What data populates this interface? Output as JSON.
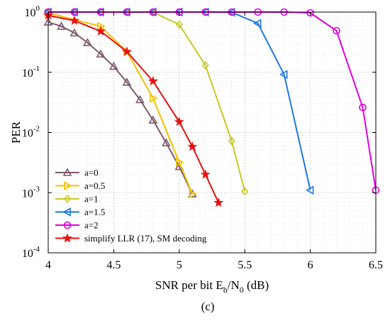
{
  "chart_data": {
    "type": "line",
    "xlabel_main": "SNR per bit E",
    "xlabel_sub1": "b",
    "xlabel_mid": "/N",
    "xlabel_sub2": "0",
    "xlabel_tail": " (dB)",
    "ylabel": "PER",
    "panel_label": "(c)",
    "xlim": [
      4,
      6.5
    ],
    "ylim_log10": [
      -4,
      0
    ],
    "y_scale": "log",
    "grid": true,
    "legend_position": "bottom-left",
    "x_ticks": [
      "4",
      "4.5",
      "5",
      "5.5",
      "6",
      "6.5"
    ],
    "x_tick_values": [
      4,
      4.5,
      5,
      5.5,
      6,
      6.5
    ],
    "y_ticks": [
      {
        "base": "10",
        "exp": "0",
        "value": 1
      },
      {
        "base": "10",
        "exp": "-1",
        "value": 0.1
      },
      {
        "base": "10",
        "exp": "-2",
        "value": 0.01
      },
      {
        "base": "10",
        "exp": "-3",
        "value": 0.001
      },
      {
        "base": "10",
        "exp": "-4",
        "value": 0.0001
      }
    ],
    "series": [
      {
        "name": "a=0",
        "color": "#7E5A6B",
        "marker": "triangle-up",
        "x": [
          4.0,
          4.1,
          4.2,
          4.3,
          4.4,
          4.5,
          4.6,
          4.7,
          4.8,
          4.9,
          5.0,
          5.1
        ],
        "y": [
          0.68,
          0.58,
          0.45,
          0.31,
          0.2,
          0.125,
          0.068,
          0.035,
          0.016,
          0.0067,
          0.0027,
          0.00095
        ]
      },
      {
        "name": "a=0.5",
        "color": "#F2C200",
        "marker": "triangle-right",
        "x": [
          4.0,
          4.4,
          4.6,
          4.8,
          5.0,
          5.1
        ],
        "y": [
          0.97,
          0.58,
          0.22,
          0.037,
          0.0032,
          0.00095
        ]
      },
      {
        "name": "a=1",
        "color": "#C9C928",
        "marker": "diamond",
        "x": [
          4.0,
          4.2,
          4.4,
          4.6,
          4.8,
          5.0,
          5.2,
          5.4,
          5.5
        ],
        "y": [
          1.0,
          1.0,
          1.0,
          1.0,
          0.99,
          0.62,
          0.13,
          0.0072,
          0.00105
        ]
      },
      {
        "name": "a=1.5",
        "color": "#1F78E0",
        "marker": "triangle-left",
        "x": [
          4.0,
          4.2,
          4.4,
          4.6,
          4.8,
          5.0,
          5.2,
          5.4,
          5.6,
          5.8,
          6.0
        ],
        "y": [
          1.0,
          1.0,
          1.0,
          1.0,
          1.0,
          1.0,
          1.0,
          0.99,
          0.65,
          0.092,
          0.0011
        ]
      },
      {
        "name": "a=2",
        "color": "#E000E0",
        "marker": "circle",
        "x": [
          4.0,
          4.2,
          4.4,
          4.6,
          4.8,
          5.0,
          5.2,
          5.4,
          5.6,
          5.8,
          6.0,
          6.2,
          6.4,
          6.5
        ],
        "y": [
          1.0,
          1.0,
          1.0,
          1.0,
          1.0,
          1.0,
          1.0,
          1.0,
          1.0,
          1.0,
          0.97,
          0.49,
          0.026,
          0.0011
        ]
      },
      {
        "name": "simplify LLR (17), SM decoding",
        "color": "#E81010",
        "marker": "star",
        "x": [
          4.0,
          4.2,
          4.4,
          4.6,
          4.8,
          5.0,
          5.1,
          5.2,
          5.3
        ],
        "y": [
          0.88,
          0.72,
          0.48,
          0.22,
          0.071,
          0.015,
          0.0058,
          0.002,
          0.00068
        ]
      }
    ]
  }
}
